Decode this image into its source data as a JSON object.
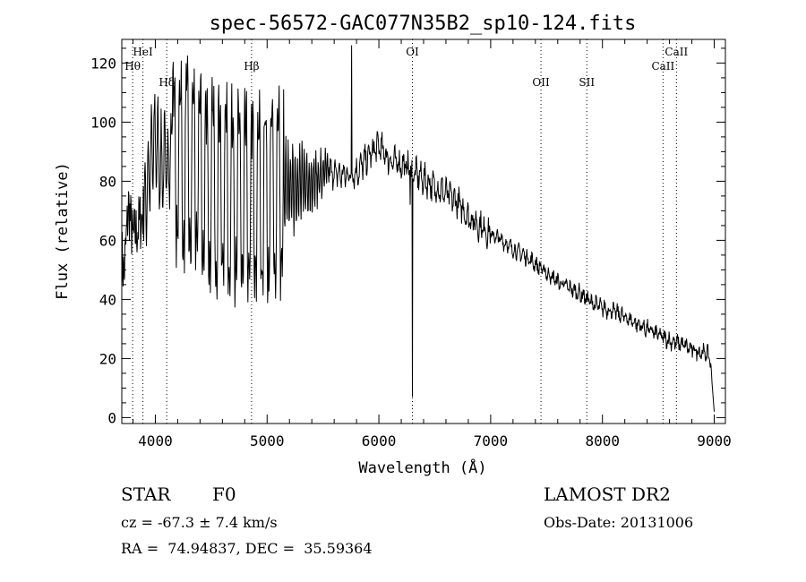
{
  "chart_data": {
    "type": "line",
    "title": "spec-56572-GAC077N35B2_sp10-124.fits",
    "xlabel": "Wavelength (Å)",
    "ylabel": "Flux (relative)",
    "xlim": [
      3700,
      9100
    ],
    "ylim": [
      -2,
      128
    ],
    "xticks": [
      {
        "v": 4000,
        "label": "4000"
      },
      {
        "v": 5000,
        "label": "5000"
      },
      {
        "v": 6000,
        "label": "6000"
      },
      {
        "v": 7000,
        "label": "7000"
      },
      {
        "v": 8000,
        "label": "8000"
      },
      {
        "v": 9000,
        "label": "9000"
      }
    ],
    "yticks": [
      {
        "v": 0,
        "label": "0"
      },
      {
        "v": 20,
        "label": "20"
      },
      {
        "v": 40,
        "label": "40"
      },
      {
        "v": 60,
        "label": "60"
      },
      {
        "v": 80,
        "label": "80"
      },
      {
        "v": 100,
        "label": "100"
      },
      {
        "v": 120,
        "label": "120"
      }
    ],
    "x_minor_step": 200,
    "y_minor_step": 5,
    "grid": false,
    "lines": [
      {
        "name": "Hθ",
        "wavelength": 3797,
        "level": "low"
      },
      {
        "name": "HeI",
        "wavelength": 3889,
        "level": "high"
      },
      {
        "name": "Hδ",
        "wavelength": 4102,
        "level": "mid"
      },
      {
        "name": "Hβ",
        "wavelength": 4861,
        "level": "low"
      },
      {
        "name": "OI",
        "wavelength": 6300,
        "level": "high"
      },
      {
        "name": "OII",
        "wavelength": 7450,
        "level": "mid"
      },
      {
        "name": "SII",
        "wavelength": 7860,
        "level": "mid"
      },
      {
        "name": "CaII",
        "wavelength": 8542,
        "level": "low"
      },
      {
        "name": "CaII",
        "wavelength": 8662,
        "level": "high"
      }
    ],
    "spectrum_anchors": [
      [
        3700,
        55
      ],
      [
        3720,
        48
      ],
      [
        3760,
        72
      ],
      [
        3800,
        60
      ],
      [
        3850,
        65
      ],
      [
        3900,
        70
      ],
      [
        3950,
        85
      ],
      [
        4000,
        95
      ],
      [
        4050,
        85
      ],
      [
        4150,
        88
      ],
      [
        4300,
        85
      ],
      [
        4500,
        78
      ],
      [
        4700,
        75
      ],
      [
        4850,
        72
      ],
      [
        5000,
        75
      ],
      [
        5200,
        78
      ],
      [
        5400,
        80
      ],
      [
        5550,
        83
      ],
      [
        5700,
        82
      ],
      [
        5800,
        83
      ],
      [
        5900,
        88
      ],
      [
        6000,
        92
      ],
      [
        6100,
        87
      ],
      [
        6250,
        85
      ],
      [
        6350,
        82
      ],
      [
        6500,
        78
      ],
      [
        6600,
        76
      ],
      [
        6700,
        73
      ],
      [
        6800,
        68
      ],
      [
        6900,
        65
      ],
      [
        7000,
        62
      ],
      [
        7100,
        60
      ],
      [
        7200,
        57
      ],
      [
        7300,
        55
      ],
      [
        7400,
        52
      ],
      [
        7500,
        49
      ],
      [
        7600,
        46
      ],
      [
        7700,
        44
      ],
      [
        7800,
        42
      ],
      [
        7900,
        39
      ],
      [
        8000,
        37
      ],
      [
        8100,
        36
      ],
      [
        8200,
        34
      ],
      [
        8300,
        32
      ],
      [
        8400,
        30
      ],
      [
        8500,
        28
      ],
      [
        8600,
        26
      ],
      [
        8700,
        25
      ],
      [
        8800,
        23
      ],
      [
        8900,
        22
      ],
      [
        8960,
        21
      ],
      [
        8980,
        12
      ],
      [
        9000,
        2
      ]
    ],
    "spectrum_features": [
      {
        "x": 5755,
        "y": 126,
        "kind": "spike"
      },
      {
        "x": 6300,
        "y": 7,
        "kind": "dip"
      },
      {
        "x": 6280,
        "y": 72,
        "kind": "dip"
      }
    ]
  },
  "footer": {
    "object_class": "STAR",
    "subclass": "F0",
    "survey": "LAMOST DR2",
    "redshift": "cz = -67.3 ± 7.4 km/s",
    "obs_date": "Obs-Date: 20131006",
    "coords": "RA =  74.94837, DEC =  35.59364"
  }
}
